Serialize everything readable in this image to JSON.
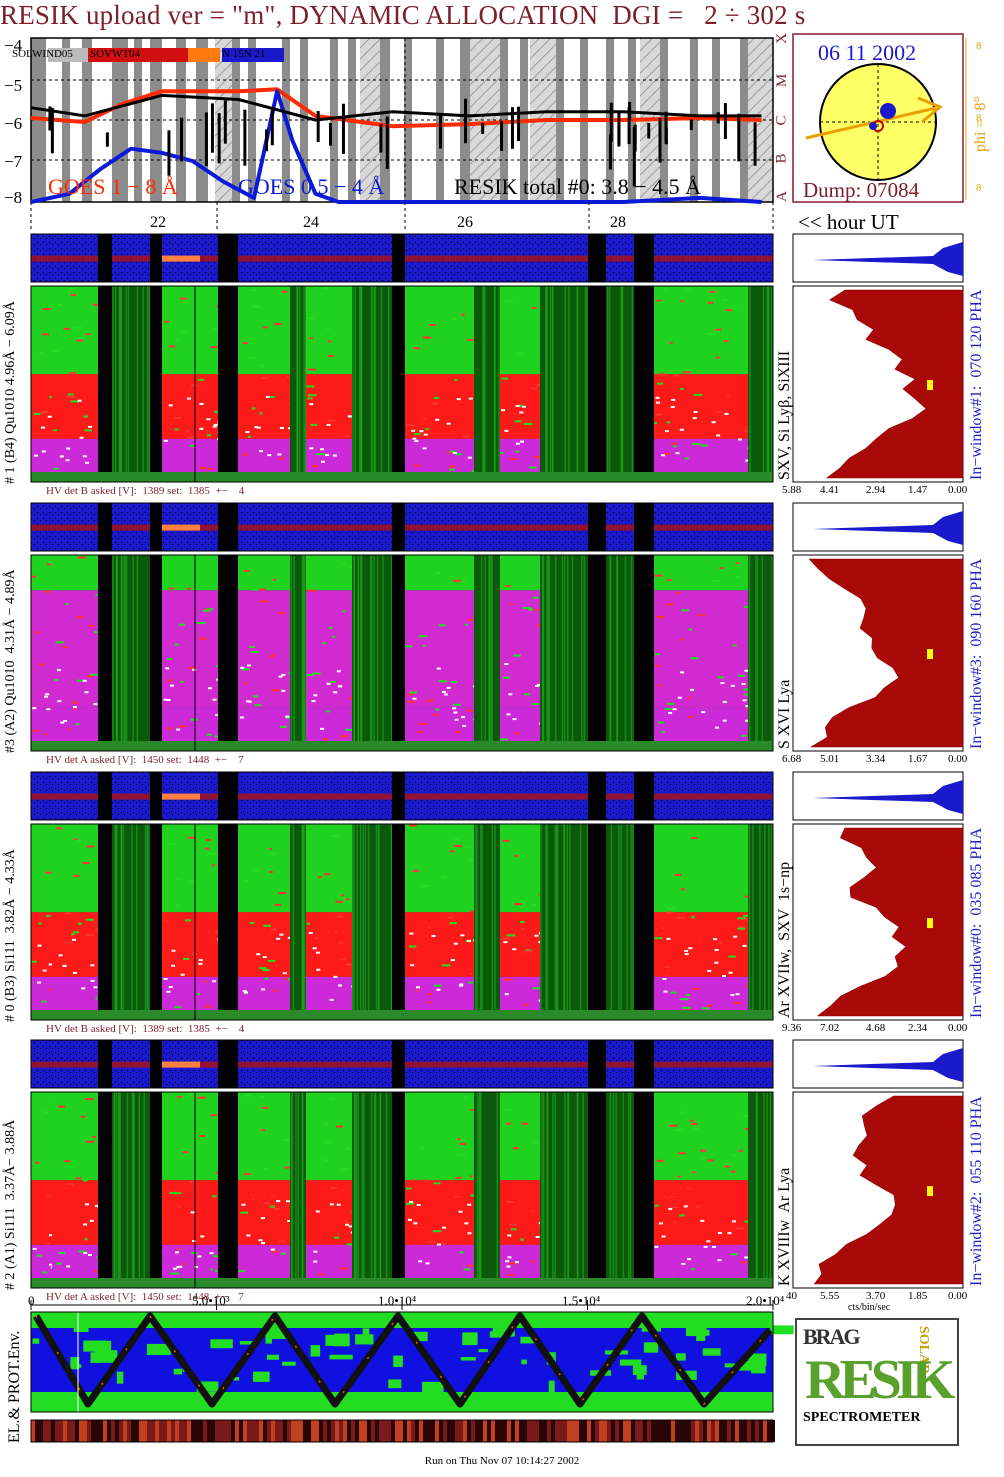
{
  "title": "RESIK upload ver = \"m\", DYNAMIC ALLOCATION  DGI =   2 ÷ 302 s",
  "goes_panel": {
    "y_ticks": [
      "−4",
      "−5",
      "−6",
      "−7",
      "−8"
    ],
    "goes_class_ticks": [
      "X",
      "M",
      "C",
      "B",
      "A"
    ],
    "legend_top": [
      "SOLWIND05",
      "SOVWT04",
      "N 15N 21"
    ],
    "legend_bottom": {
      "goes_1_8": "GOES 1 − 8 Å",
      "goes_05_4": "GOES 0.5 − 4 Å",
      "resik_total": "RESIK total #0: 3.8 − 4.5 Å"
    },
    "colors": {
      "goes_1_8": "#ff2a00",
      "goes_05_4": "#0a1ad8",
      "resik": "#000000"
    },
    "hour_ticks": [
      "22",
      "24",
      "26",
      "28"
    ],
    "hour_axis_label": "<< hour UT"
  },
  "sun_panel": {
    "date": "06 11 2002",
    "phi_label": "phi =  8°",
    "phi_ticks": [
      "8",
      "8",
      "8"
    ],
    "dump": "Dump: 07084",
    "colors": {
      "disc": "#ffff66",
      "border": "#8a1c2c",
      "arrow": "#e8a000",
      "blue": "#1a1acc"
    }
  },
  "channels": [
    {
      "left_label": "# 1 (B4) Qu1010 4.96Å − 6.09Å",
      "line_label": "SXV, Si Lyβ, SiXIII",
      "window_label": "In−window#1:  070 120 PHA",
      "hv_label": "HV det B asked [V]:  1389 set:  1385  +−    4",
      "spectrum_ticks": [
        "5.88",
        "4.41",
        "2.94",
        "1.47",
        "0.00"
      ],
      "profile": [
        0.72,
        0.8,
        0.68,
        0.62,
        0.55,
        0.58,
        0.48,
        0.35,
        0.42,
        0.3,
        0.38,
        0.32,
        0.25,
        0.3,
        0.45,
        0.52,
        0.6,
        0.7,
        0.78,
        0.85
      ]
    },
    {
      "left_label": "#3 (A2) Qu1010  4.31Å − 4.89Å",
      "line_label": "S XVI Lya",
      "window_label": "In−window#3:  090 160 PHA",
      "hv_label": "HV det A asked [V]:  1450 set:  1448  +−    7",
      "spectrum_ticks": [
        "6.68",
        "5.01",
        "3.34",
        "1.67",
        "0.00"
      ],
      "profile": [
        0.95,
        0.9,
        0.82,
        0.7,
        0.6,
        0.58,
        0.62,
        0.6,
        0.55,
        0.58,
        0.5,
        0.45,
        0.4,
        0.45,
        0.55,
        0.72,
        0.8,
        0.85,
        0.82,
        0.9
      ]
    },
    {
      "left_label": "# 0 (B3) Si111  3.82Å − 4.33Å",
      "line_label": "Ar XVIIw,  SXV  1s−np",
      "window_label": "In−window#0:  035 085 PHA",
      "hv_label": "HV det B asked [V]:  1389 set:  1385  +−    4",
      "spectrum_ticks": [
        "9.36",
        "7.02",
        "4.68",
        "2.34",
        "0.00"
      ],
      "profile": [
        0.72,
        0.74,
        0.62,
        0.58,
        0.55,
        0.6,
        0.7,
        0.66,
        0.55,
        0.5,
        0.4,
        0.44,
        0.35,
        0.4,
        0.42,
        0.5,
        0.6,
        0.74,
        0.8,
        0.88
      ]
    },
    {
      "left_label": "# 2 (A1) Si111  3.37Å− 3.88Å",
      "line_label": "K XVIIIw  Ar Lya",
      "window_label": "In−window#2:  055 110 PHA",
      "hv_label": "HV det A asked [V]:  1450 set:  1448  +−    7",
      "spectrum_ticks": [
        "5.55",
        "3.70",
        "1.85",
        "0.00"
      ],
      "spectrum_first_tick": "40",
      "spectrum_unit": "cts/bin/sec",
      "profile": [
        0.45,
        0.55,
        0.6,
        0.58,
        0.6,
        0.62,
        0.65,
        0.6,
        0.64,
        0.5,
        0.42,
        0.4,
        0.45,
        0.5,
        0.6,
        0.7,
        0.78,
        0.85,
        0.88,
        0.92
      ]
    }
  ],
  "time_axis": {
    "ticks": [
      "0",
      "5.0•10³",
      "1.0•10⁴",
      "1.5•10⁴",
      "2.0•10⁴"
    ],
    "values": [
      0,
      5000,
      10000,
      15000,
      20000
    ]
  },
  "env_panel": {
    "label": "EL.& PROT.Env.",
    "colors": {
      "bg": "#1010e0",
      "green": "#22dd22",
      "track": "#111111",
      "hot": "#ff6a00"
    }
  },
  "logo": {
    "letters_top": "BRAG",
    "letters_right": "SOLAR",
    "big": "RESIK",
    "bottom": "SPECTROMETER"
  },
  "footer": "Run on Thu Nov 07 10:14:27 2002",
  "chart_data": [
    {
      "type": "line",
      "title": "RESIK upload ver = \"m\", DYNAMIC ALLOCATION  DGI =   2 ÷ 302 s",
      "xlabel": "<< hour UT",
      "ylabel": "",
      "x_ticks": [
        22,
        24,
        26,
        28
      ],
      "ylim": [
        -8,
        -4
      ],
      "series": [
        {
          "name": "GOES 1 − 8 Å",
          "x": [
            20.0,
            21.0,
            21.5,
            22.0,
            22.5,
            23.0,
            23.5,
            24.0,
            25.0,
            26.0,
            27.0,
            28.0,
            29.0,
            29.8
          ],
          "values": [
            -5.95,
            -6.05,
            -5.6,
            -5.3,
            -5.3,
            -5.3,
            -5.25,
            -5.9,
            -6.15,
            -6.1,
            -6.0,
            -6.0,
            -5.95,
            -6.0
          ]
        },
        {
          "name": "GOES 0.5 − 4 Å",
          "x": [
            20.0,
            20.8,
            21.2,
            21.6,
            22.0,
            22.4,
            22.8,
            23.2,
            23.5,
            23.7,
            24.0,
            24.3,
            26.0,
            28.0,
            29.0,
            29.8
          ],
          "values": [
            -8.0,
            -7.8,
            -7.2,
            -6.7,
            -6.8,
            -7.0,
            -7.5,
            -7.9,
            -5.3,
            -6.5,
            -7.8,
            -8.0,
            -8.0,
            -8.0,
            -7.9,
            -8.0
          ]
        },
        {
          "name": "RESIK total #0: 3.8 − 4.5 Å",
          "x": [
            20.0,
            21.0,
            22.0,
            23.0,
            24.0,
            25.0,
            26.0,
            27.0,
            28.0,
            29.0,
            29.8
          ],
          "values": [
            -5.7,
            -5.9,
            -5.4,
            -5.5,
            -6.0,
            -5.8,
            -5.9,
            -5.8,
            -5.8,
            -5.9,
            -5.9
          ]
        }
      ]
    }
  ]
}
